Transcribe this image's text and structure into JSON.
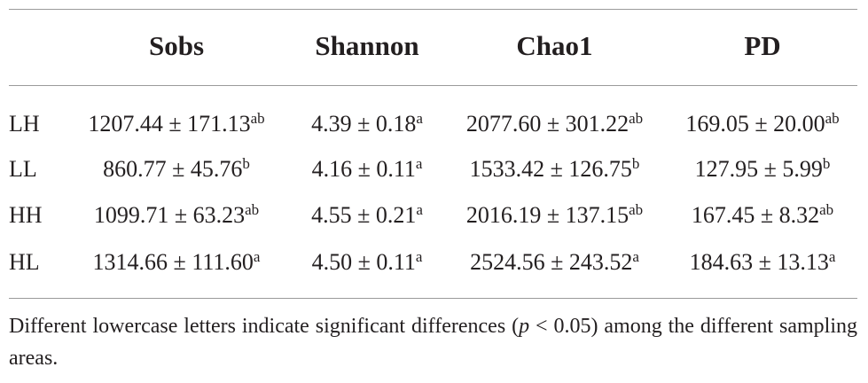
{
  "table": {
    "header": [
      "",
      "Sobs",
      "Shannon",
      "Chao1",
      "PD"
    ],
    "rows": [
      {
        "label": "LH",
        "cells": [
          {
            "text": "1207.44 ± 171.13",
            "sup": "ab"
          },
          {
            "text": "4.39 ± 0.18",
            "sup": "a"
          },
          {
            "text": "2077.60 ± 301.22",
            "sup": "ab"
          },
          {
            "text": "169.05 ± 20.00",
            "sup": "ab"
          }
        ]
      },
      {
        "label": "LL",
        "cells": [
          {
            "text": "860.77 ± 45.76",
            "sup": "b"
          },
          {
            "text": "4.16 ± 0.11",
            "sup": "a"
          },
          {
            "text": "1533.42 ± 126.75",
            "sup": "b"
          },
          {
            "text": "127.95 ± 5.99",
            "sup": "b"
          }
        ]
      },
      {
        "label": "HH",
        "cells": [
          {
            "text": "1099.71 ± 63.23",
            "sup": "ab"
          },
          {
            "text": "4.55 ± 0.21",
            "sup": "a"
          },
          {
            "text": "2016.19 ± 137.15",
            "sup": "ab"
          },
          {
            "text": "167.45 ± 8.32",
            "sup": "ab"
          }
        ]
      },
      {
        "label": "HL",
        "cells": [
          {
            "text": "1314.66 ± 111.60",
            "sup": "a"
          },
          {
            "text": "4.50 ± 0.11",
            "sup": "a"
          },
          {
            "text": "2524.56 ± 243.52",
            "sup": "a"
          },
          {
            "text": "184.63 ± 13.13",
            "sup": "a"
          }
        ]
      }
    ],
    "footnote": [
      "Different lowercase letters indicate significant differences (",
      "p",
      " < 0.05) among the different sampling areas."
    ]
  }
}
